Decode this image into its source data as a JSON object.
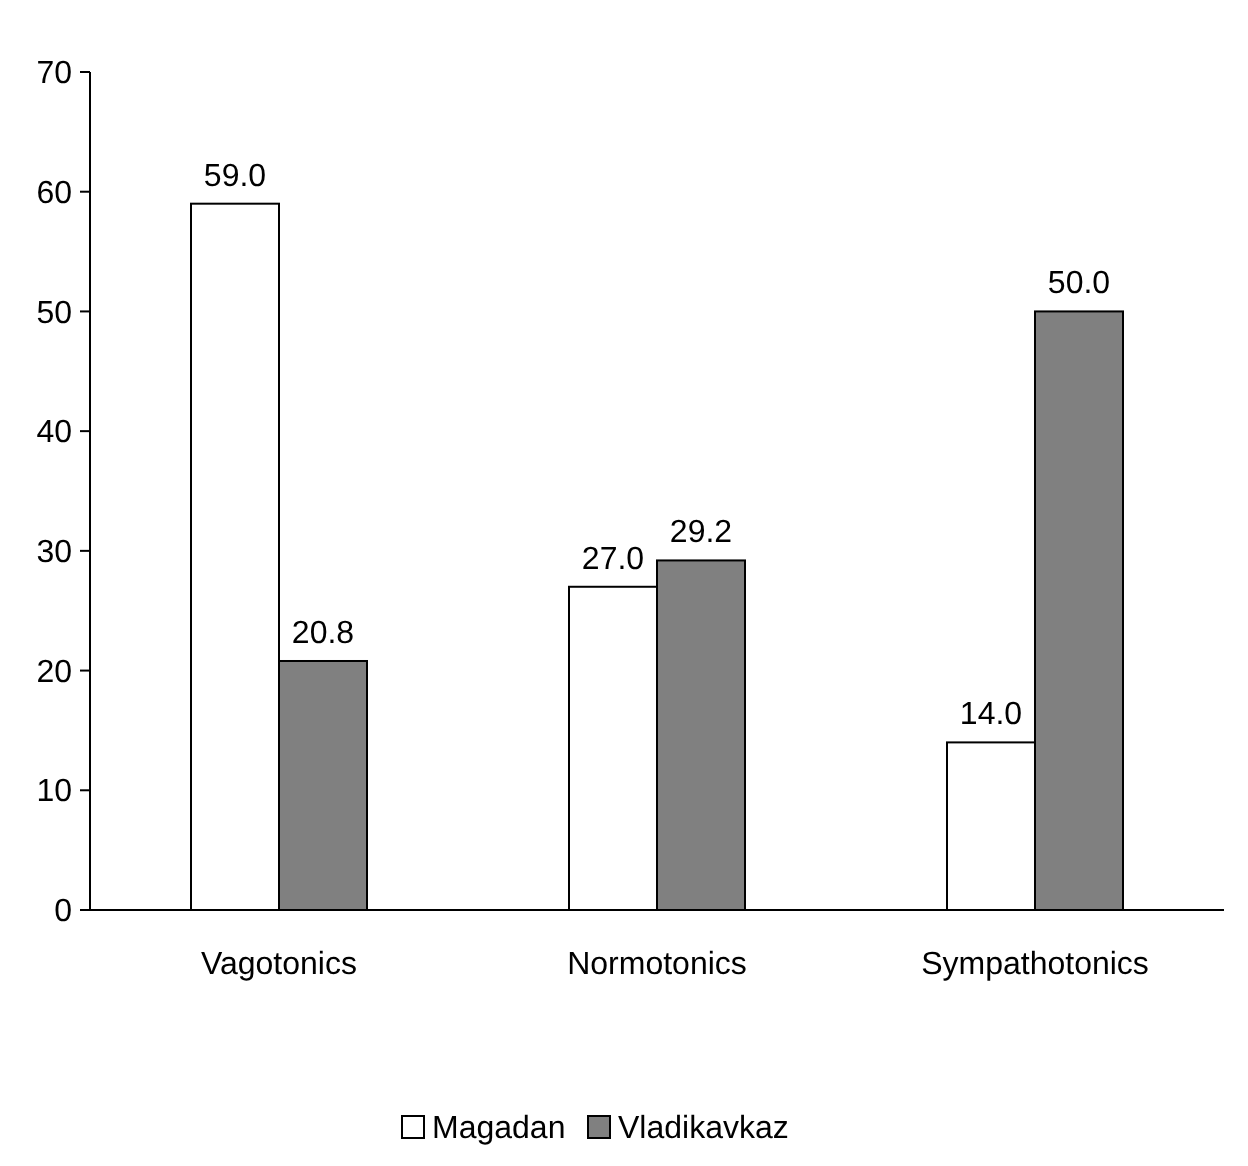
{
  "chart_data": {
    "type": "bar",
    "categories": [
      "Vagotonics",
      "Normotonics",
      "Sympathotonics"
    ],
    "series": [
      {
        "name": "Magadan",
        "color": "#ffffff",
        "values": [
          59,
          27,
          14
        ],
        "value_labels": [
          "59.0",
          "27.0",
          "14.0"
        ]
      },
      {
        "name": "Vladikavkaz",
        "color": "#808080",
        "values": [
          20.8,
          29.2,
          50
        ],
        "value_labels": [
          "20.8",
          "29.2",
          "50.0"
        ]
      }
    ],
    "ylim": [
      0,
      70
    ],
    "yticks": [
      0,
      10,
      20,
      30,
      40,
      50,
      60,
      70
    ],
    "grid": false,
    "legend": "bottom"
  }
}
